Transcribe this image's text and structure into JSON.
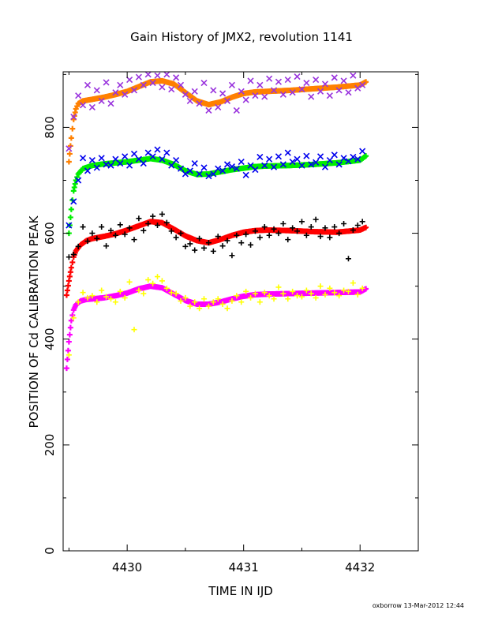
{
  "chart_data": {
    "type": "scatter",
    "title": "Gain History of JMX2, revolution 1141",
    "xlabel": "TIME IN IJD",
    "ylabel": "POSITION OF Cd CALIBRATION PEAK",
    "xlim": [
      4429.45,
      4432.5
    ],
    "ylim": [
      0,
      905
    ],
    "xticks": [
      4430,
      4431,
      4432
    ],
    "xtick_labels": [
      "4430",
      "4431",
      "4432"
    ],
    "yticks": [
      0,
      200,
      400,
      600,
      800
    ],
    "ytick_labels": [
      "0",
      "200",
      "400",
      "600",
      "800"
    ],
    "grid": false,
    "legend": "none",
    "footer": "oxborrow 13-Mar-2012 12:44",
    "series": [
      {
        "color": "#ff8000",
        "marker": "plus",
        "role": "smooth",
        "x": [
          4429.5,
          4429.52,
          4429.54,
          4429.56,
          4429.58,
          4429.62,
          4429.7,
          4429.8,
          4429.9,
          4430.0,
          4430.1,
          4430.2,
          4430.3,
          4430.4,
          4430.5,
          4430.6,
          4430.7,
          4430.8,
          4430.9,
          4431.0,
          4431.1,
          4431.2,
          4431.4,
          4431.6,
          4431.8,
          4432.0,
          4432.05
        ],
        "y": [
          735,
          780,
          815,
          835,
          845,
          850,
          853,
          857,
          862,
          868,
          877,
          886,
          888,
          882,
          866,
          850,
          843,
          848,
          857,
          864,
          867,
          868,
          870,
          873,
          876,
          880,
          886
        ]
      },
      {
        "color": "#9933dd",
        "marker": "x",
        "role": "raw",
        "x": [
          4429.5,
          4429.54,
          4429.58,
          4429.62,
          4429.66,
          4429.7,
          4429.74,
          4429.78,
          4429.82,
          4429.86,
          4429.9,
          4429.94,
          4429.98,
          4430.02,
          4430.06,
          4430.1,
          4430.14,
          4430.18,
          4430.22,
          4430.26,
          4430.3,
          4430.34,
          4430.38,
          4430.42,
          4430.46,
          4430.5,
          4430.54,
          4430.58,
          4430.62,
          4430.66,
          4430.7,
          4430.74,
          4430.78,
          4430.82,
          4430.86,
          4430.9,
          4430.94,
          4430.98,
          4431.02,
          4431.06,
          4431.1,
          4431.14,
          4431.18,
          4431.22,
          4431.26,
          4431.3,
          4431.34,
          4431.38,
          4431.42,
          4431.46,
          4431.5,
          4431.54,
          4431.58,
          4431.62,
          4431.66,
          4431.7,
          4431.74,
          4431.78,
          4431.82,
          4431.86,
          4431.9,
          4431.94,
          4431.98,
          4432.02
        ],
        "y": [
          760,
          820,
          860,
          842,
          880,
          838,
          870,
          850,
          885,
          845,
          866,
          880,
          862,
          890,
          870,
          895,
          880,
          900,
          884,
          898,
          876,
          900,
          872,
          894,
          880,
          862,
          850,
          868,
          845,
          884,
          832,
          870,
          838,
          864,
          850,
          880,
          832,
          868,
          852,
          888,
          860,
          880,
          858,
          892,
          870,
          886,
          862,
          890,
          866,
          896,
          872,
          884,
          858,
          890,
          868,
          882,
          860,
          894,
          870,
          888,
          866,
          898,
          874,
          880
        ]
      },
      {
        "color": "#00ee00",
        "marker": "plus",
        "role": "smooth",
        "x": [
          4429.5,
          4429.52,
          4429.54,
          4429.56,
          4429.58,
          4429.62,
          4429.7,
          4429.8,
          4429.9,
          4430.0,
          4430.1,
          4430.2,
          4430.3,
          4430.4,
          4430.5,
          4430.6,
          4430.7,
          4430.8,
          4430.9,
          4431.0,
          4431.1,
          4431.2,
          4431.4,
          4431.6,
          4431.8,
          4432.0,
          4432.05
        ],
        "y": [
          600,
          645,
          680,
          700,
          712,
          722,
          728,
          731,
          733,
          735,
          738,
          741,
          738,
          730,
          718,
          711,
          712,
          716,
          720,
          723,
          726,
          727,
          728,
          730,
          733,
          738,
          746
        ]
      },
      {
        "color": "#0000ee",
        "marker": "x",
        "role": "raw",
        "x": [
          4429.5,
          4429.54,
          4429.58,
          4429.62,
          4429.66,
          4429.7,
          4429.74,
          4429.78,
          4429.82,
          4429.86,
          4429.9,
          4429.94,
          4429.98,
          4430.02,
          4430.06,
          4430.1,
          4430.14,
          4430.18,
          4430.22,
          4430.26,
          4430.3,
          4430.34,
          4430.38,
          4430.42,
          4430.46,
          4430.5,
          4430.54,
          4430.58,
          4430.62,
          4430.66,
          4430.7,
          4430.74,
          4430.78,
          4430.82,
          4430.86,
          4430.9,
          4430.94,
          4430.98,
          4431.02,
          4431.06,
          4431.1,
          4431.14,
          4431.18,
          4431.22,
          4431.26,
          4431.3,
          4431.34,
          4431.38,
          4431.42,
          4431.46,
          4431.5,
          4431.54,
          4431.58,
          4431.62,
          4431.66,
          4431.7,
          4431.74,
          4431.78,
          4431.82,
          4431.86,
          4431.9,
          4431.94,
          4431.98,
          4432.02
        ],
        "y": [
          615,
          660,
          700,
          742,
          718,
          738,
          724,
          742,
          730,
          728,
          740,
          732,
          745,
          728,
          750,
          740,
          732,
          752,
          745,
          758,
          740,
          752,
          728,
          738,
          722,
          712,
          718,
          732,
          712,
          724,
          708,
          712,
          722,
          718,
          730,
          726,
          722,
          735,
          710,
          728,
          720,
          744,
          728,
          740,
          725,
          745,
          730,
          752,
          735,
          740,
          728,
          746,
          730,
          734,
          745,
          725,
          738,
          748,
          730,
          742,
          736,
          744,
          740,
          755
        ]
      },
      {
        "color": "#ff0000",
        "marker": "plus",
        "role": "smooth",
        "x": [
          4429.48,
          4429.5,
          4429.52,
          4429.54,
          4429.56,
          4429.6,
          4429.65,
          4429.7,
          4429.8,
          4429.9,
          4430.0,
          4430.1,
          4430.2,
          4430.3,
          4430.4,
          4430.5,
          4430.6,
          4430.7,
          4430.8,
          4430.9,
          4431.0,
          4431.1,
          4431.2,
          4431.4,
          4431.6,
          4431.8,
          4432.0,
          4432.05
        ],
        "y": [
          483,
          510,
          535,
          555,
          567,
          578,
          586,
          590,
          594,
          599,
          606,
          614,
          622,
          620,
          608,
          595,
          586,
          582,
          588,
          596,
          602,
          605,
          606,
          605,
          603,
          602,
          606,
          611
        ]
      },
      {
        "color": "#000000",
        "marker": "plus",
        "role": "raw",
        "x": [
          4429.5,
          4429.54,
          4429.58,
          4429.62,
          4429.66,
          4429.7,
          4429.74,
          4429.78,
          4429.82,
          4429.86,
          4429.9,
          4429.94,
          4429.98,
          4430.02,
          4430.06,
          4430.1,
          4430.14,
          4430.18,
          4430.22,
          4430.26,
          4430.3,
          4430.34,
          4430.38,
          4430.42,
          4430.46,
          4430.5,
          4430.54,
          4430.58,
          4430.62,
          4430.66,
          4430.7,
          4430.74,
          4430.78,
          4430.82,
          4430.86,
          4430.9,
          4430.94,
          4430.98,
          4431.02,
          4431.06,
          4431.1,
          4431.14,
          4431.18,
          4431.22,
          4431.26,
          4431.3,
          4431.34,
          4431.38,
          4431.42,
          4431.46,
          4431.5,
          4431.54,
          4431.58,
          4431.62,
          4431.66,
          4431.7,
          4431.74,
          4431.78,
          4431.82,
          4431.86,
          4431.9,
          4431.94,
          4431.98,
          4432.02
        ],
        "y": [
          555,
          560,
          575,
          612,
          585,
          600,
          590,
          612,
          576,
          605,
          596,
          616,
          598,
          610,
          588,
          628,
          605,
          618,
          632,
          615,
          636,
          620,
          604,
          592,
          600,
          575,
          580,
          568,
          590,
          572,
          582,
          566,
          594,
          576,
          586,
          558,
          596,
          582,
          598,
          578,
          604,
          592,
          612,
          596,
          608,
          600,
          618,
          588,
          610,
          604,
          622,
          596,
          612,
          626,
          594,
          610,
          592,
          612,
          600,
          618,
          552,
          606,
          615,
          622
        ]
      },
      {
        "color": "#ff00ff",
        "marker": "plus",
        "role": "smooth",
        "x": [
          4429.48,
          4429.5,
          4429.52,
          4429.54,
          4429.56,
          4429.6,
          4429.65,
          4429.7,
          4429.8,
          4429.9,
          4430.0,
          4430.1,
          4430.2,
          4430.3,
          4430.4,
          4430.5,
          4430.6,
          4430.7,
          4430.8,
          4430.9,
          4431.0,
          4431.1,
          4431.2,
          4431.4,
          4431.6,
          4431.8,
          4432.0,
          4432.05
        ],
        "y": [
          345,
          395,
          435,
          455,
          465,
          472,
          475,
          476,
          478,
          482,
          487,
          495,
          500,
          497,
          485,
          473,
          466,
          466,
          470,
          476,
          481,
          484,
          485,
          486,
          487,
          488,
          489,
          495
        ]
      },
      {
        "color": "#ffff00",
        "marker": "plus",
        "role": "raw",
        "x": [
          4429.5,
          4429.54,
          4429.58,
          4429.62,
          4429.66,
          4429.7,
          4429.74,
          4429.78,
          4429.82,
          4429.86,
          4429.9,
          4429.94,
          4429.98,
          4430.02,
          4430.06,
          4430.1,
          4430.14,
          4430.18,
          4430.22,
          4430.26,
          4430.3,
          4430.34,
          4430.38,
          4430.42,
          4430.46,
          4430.5,
          4430.54,
          4430.58,
          4430.62,
          4430.66,
          4430.7,
          4430.74,
          4430.78,
          4430.82,
          4430.86,
          4430.9,
          4430.94,
          4430.98,
          4431.02,
          4431.06,
          4431.1,
          4431.14,
          4431.18,
          4431.22,
          4431.26,
          4431.3,
          4431.34,
          4431.38,
          4431.42,
          4431.46,
          4431.5,
          4431.54,
          4431.58,
          4431.62,
          4431.66,
          4431.7,
          4431.74,
          4431.78,
          4431.82,
          4431.86,
          4431.9,
          4431.94,
          4431.98,
          4432.02
        ],
        "y": [
          370,
          440,
          470,
          488,
          478,
          482,
          470,
          492,
          480,
          476,
          470,
          490,
          478,
          508,
          418,
          492,
          486,
          512,
          505,
          518,
          510,
          496,
          488,
          486,
          472,
          478,
          462,
          470,
          458,
          476,
          462,
          470,
          476,
          466,
          458,
          472,
          482,
          470,
          490,
          478,
          486,
          470,
          488,
          482,
          476,
          498,
          486,
          476,
          490,
          482,
          480,
          492,
          486,
          478,
          500,
          484,
          496,
          488,
          482,
          492,
          490,
          506,
          484,
          496
        ]
      }
    ]
  }
}
